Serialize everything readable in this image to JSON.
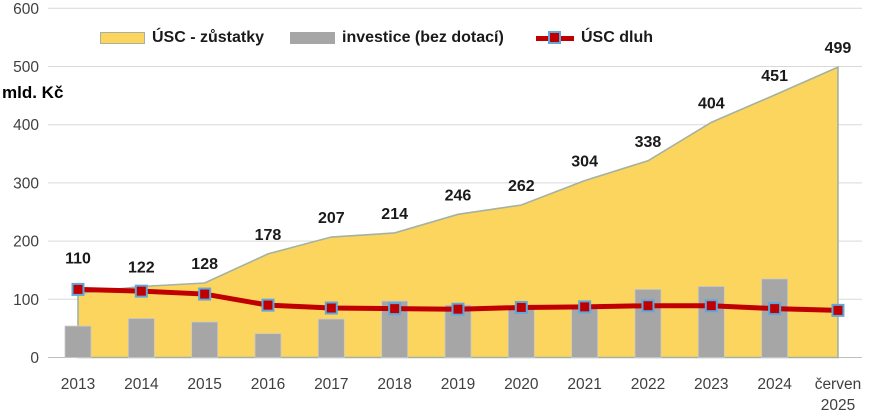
{
  "chart_data": {
    "type": "combo",
    "subtypes": [
      "area",
      "bar",
      "line"
    ],
    "categories": [
      "2013",
      "2014",
      "2015",
      "2016",
      "2017",
      "2018",
      "2019",
      "2020",
      "2021",
      "2022",
      "2023",
      "2024",
      "červen 2025"
    ],
    "series": [
      {
        "name": "ÚSC - zůstatky",
        "type": "area",
        "values": [
          110,
          122,
          128,
          178,
          207,
          214,
          246,
          262,
          304,
          338,
          404,
          451,
          499
        ],
        "data_labels": [
          110,
          122,
          128,
          178,
          207,
          214,
          246,
          262,
          304,
          338,
          404,
          451,
          499
        ],
        "fill": "#FCD55F",
        "stroke": "#A3B2A3"
      },
      {
        "name": "investice (bez dotací)",
        "type": "bar",
        "values": [
          54,
          67,
          61,
          41,
          66,
          97,
          90,
          88,
          84,
          117,
          122,
          135,
          null
        ],
        "color": "#A6A6A6"
      },
      {
        "name": "ÚSC dluh",
        "type": "line",
        "values": [
          117,
          114,
          109,
          90,
          85,
          84,
          83,
          86,
          87,
          89,
          89,
          84,
          81
        ],
        "color": "#C00000",
        "marker": "square",
        "marker_fill": "#C00000",
        "marker_border": "#5FA8DC"
      }
    ],
    "ylabel": "mld. Kč",
    "ylim": [
      0,
      600
    ],
    "yticks": [
      0,
      100,
      200,
      300,
      400,
      500,
      600
    ],
    "grid": true,
    "grid_color": "#D9D9D9",
    "axis_line_color": "#BFBFBF",
    "axis_text_color": "#404040",
    "label_text_color": "#1a1a1a",
    "legend_position": "top"
  }
}
